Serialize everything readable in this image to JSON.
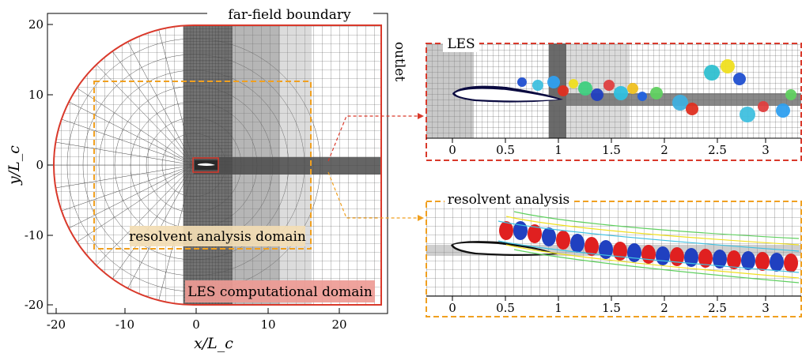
{
  "main_plot": {
    "x_axis_label": "x/L_c",
    "y_axis_label": "y/L_c",
    "x_ticks": [
      "-20",
      "-10",
      "0",
      "10",
      "20"
    ],
    "y_ticks": [
      "20",
      "10",
      "0",
      "-10",
      "-20"
    ],
    "far_field_label": "far-field boundary",
    "outlet_label": "outlet",
    "resolvent_domain_label": "resolvent analysis domain",
    "les_domain_label": "LES computational domain"
  },
  "les_panel": {
    "label": "LES",
    "x_ticks": [
      "0",
      "0.5",
      "1",
      "1.5",
      "2",
      "2.5",
      "3"
    ]
  },
  "resolvent_panel": {
    "label": "resolvent analysis",
    "x_ticks": [
      "0",
      "0.5",
      "1",
      "1.5",
      "2",
      "2.5",
      "3"
    ]
  },
  "colors": {
    "les": "#d9392b",
    "resolvent": "#f0a020",
    "mesh": "#555555"
  }
}
